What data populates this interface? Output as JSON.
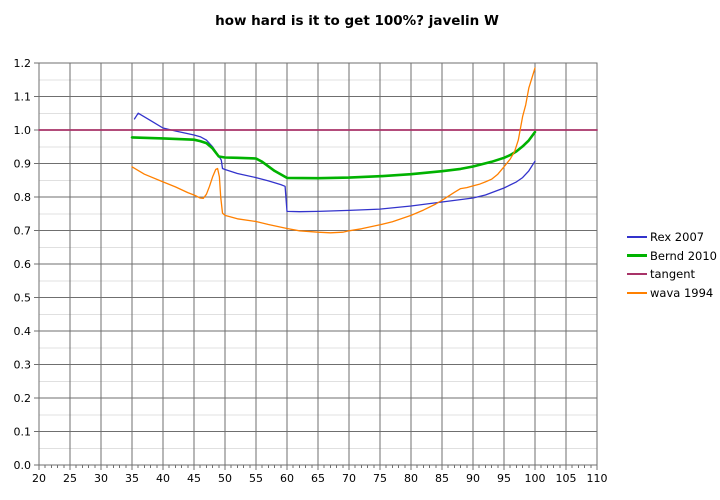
{
  "title": "how hard is it to get 100%? javelin W",
  "background": "#ffffff",
  "legend": {
    "position": "right",
    "items": [
      {
        "label": "Rex 2007",
        "color": "#3333cc",
        "thickness": 2
      },
      {
        "label": "Bernd 2010",
        "color": "#00b200",
        "thickness": 3
      },
      {
        "label": "tangent",
        "color": "#a83368",
        "thickness": 2
      },
      {
        "label": "wava 1994",
        "color": "#ff8000",
        "thickness": 2
      }
    ]
  },
  "axes": {
    "x_tick_labels": [
      "20",
      "25",
      "30",
      "35",
      "40",
      "45",
      "50",
      "55",
      "60",
      "65",
      "70",
      "75",
      "80",
      "85",
      "90",
      "95",
      "100",
      "105",
      "110"
    ],
    "y_tick_labels": [
      "0.0",
      "0.1",
      "0.2",
      "0.3",
      "0.4",
      "0.5",
      "0.6",
      "0.7",
      "0.8",
      "0.9",
      "1.0",
      "1.1",
      "1.2"
    ],
    "major_grid_color": "#6f6f6f",
    "minor_grid_color": "#e0e0e0",
    "label_color": "#000000"
  },
  "chart_data": {
    "type": "line",
    "title": "how hard is it to get 100%? javelin W",
    "xlabel": "",
    "ylabel": "",
    "xlim": [
      20,
      110
    ],
    "ylim": [
      0,
      1.2
    ],
    "x_major_step": 5,
    "x_minor_step": 1,
    "y_major_step": 0.1,
    "y_minor_step": 0.05,
    "grid": "major dark gray vertical+horizontal, minor light gray horizontal",
    "legend_position": "right",
    "series": [
      {
        "name": "Rex 2007",
        "color": "#3333cc",
        "width": 1.3,
        "points": [
          [
            35.4,
            1.033
          ],
          [
            36,
            1.05
          ],
          [
            38,
            1.028
          ],
          [
            40,
            1.006
          ],
          [
            42,
            0.997
          ],
          [
            45,
            0.985
          ],
          [
            46,
            0.98
          ],
          [
            47,
            0.97
          ],
          [
            48,
            0.95
          ],
          [
            49,
            0.922
          ],
          [
            49.4,
            0.91
          ],
          [
            49.6,
            0.885
          ],
          [
            50,
            0.882
          ],
          [
            52,
            0.87
          ],
          [
            55,
            0.858
          ],
          [
            57,
            0.848
          ],
          [
            59,
            0.837
          ],
          [
            59.7,
            0.832
          ],
          [
            60,
            0.757
          ],
          [
            62,
            0.756
          ],
          [
            65,
            0.757
          ],
          [
            70,
            0.76
          ],
          [
            75,
            0.764
          ],
          [
            80,
            0.773
          ],
          [
            85,
            0.785
          ],
          [
            90,
            0.797
          ],
          [
            92,
            0.806
          ],
          [
            95,
            0.827
          ],
          [
            97,
            0.845
          ],
          [
            98,
            0.858
          ],
          [
            99,
            0.878
          ],
          [
            100,
            0.907
          ]
        ]
      },
      {
        "name": "Bernd 2010",
        "color": "#00b200",
        "width": 2.6,
        "points": [
          [
            35,
            0.978
          ],
          [
            40,
            0.975
          ],
          [
            45,
            0.971
          ],
          [
            46,
            0.967
          ],
          [
            47,
            0.961
          ],
          [
            48,
            0.945
          ],
          [
            49,
            0.921
          ],
          [
            50,
            0.918
          ],
          [
            52,
            0.917
          ],
          [
            55,
            0.915
          ],
          [
            56,
            0.905
          ],
          [
            58,
            0.878
          ],
          [
            60,
            0.857
          ],
          [
            65,
            0.856
          ],
          [
            70,
            0.858
          ],
          [
            75,
            0.862
          ],
          [
            80,
            0.868
          ],
          [
            85,
            0.877
          ],
          [
            88,
            0.884
          ],
          [
            90,
            0.891
          ],
          [
            93,
            0.905
          ],
          [
            95,
            0.917
          ],
          [
            96,
            0.925
          ],
          [
            97,
            0.936
          ],
          [
            98,
            0.951
          ],
          [
            99,
            0.969
          ],
          [
            100,
            0.994
          ]
        ]
      },
      {
        "name": "tangent",
        "color": "#a83368",
        "width": 1.8,
        "points": [
          [
            20,
            1.0
          ],
          [
            110,
            1.0
          ]
        ]
      },
      {
        "name": "wava 1994",
        "color": "#ff8000",
        "width": 1.3,
        "points": [
          [
            35,
            0.89
          ],
          [
            37,
            0.868
          ],
          [
            40,
            0.845
          ],
          [
            42,
            0.83
          ],
          [
            44,
            0.813
          ],
          [
            45,
            0.806
          ],
          [
            46,
            0.797
          ],
          [
            46.5,
            0.796
          ],
          [
            47,
            0.808
          ],
          [
            47.5,
            0.832
          ],
          [
            48,
            0.86
          ],
          [
            48.5,
            0.882
          ],
          [
            48.8,
            0.885
          ],
          [
            49.1,
            0.86
          ],
          [
            49.3,
            0.8
          ],
          [
            49.6,
            0.752
          ],
          [
            50,
            0.745
          ],
          [
            52,
            0.735
          ],
          [
            55,
            0.727
          ],
          [
            57,
            0.718
          ],
          [
            60,
            0.706
          ],
          [
            62,
            0.699
          ],
          [
            65,
            0.695
          ],
          [
            67,
            0.693
          ],
          [
            69,
            0.695
          ],
          [
            70,
            0.699
          ],
          [
            72,
            0.705
          ],
          [
            75,
            0.717
          ],
          [
            77,
            0.726
          ],
          [
            80,
            0.745
          ],
          [
            82,
            0.761
          ],
          [
            84,
            0.779
          ],
          [
            85,
            0.79
          ],
          [
            86,
            0.802
          ],
          [
            87,
            0.814
          ],
          [
            88,
            0.825
          ],
          [
            89,
            0.828
          ],
          [
            90,
            0.833
          ],
          [
            91,
            0.838
          ],
          [
            92,
            0.845
          ],
          [
            93,
            0.853
          ],
          [
            94,
            0.868
          ],
          [
            95,
            0.89
          ],
          [
            96,
            0.913
          ],
          [
            96.7,
            0.935
          ],
          [
            97.3,
            0.97
          ],
          [
            98,
            1.04
          ],
          [
            98.5,
            1.075
          ],
          [
            99,
            1.125
          ],
          [
            99.5,
            1.155
          ],
          [
            100,
            1.185
          ]
        ]
      }
    ]
  }
}
